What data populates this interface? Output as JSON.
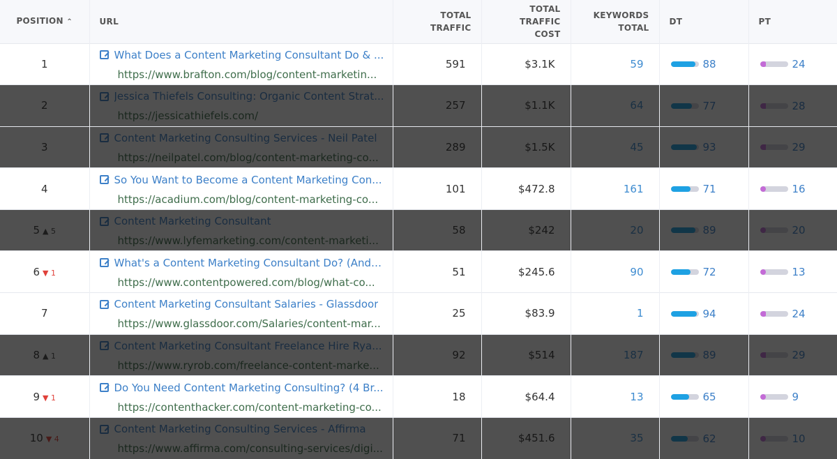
{
  "columns": {
    "position": "POSITION",
    "url": "URL",
    "traffic": "TOTAL TRAFFIC",
    "cost": "TOTAL TRAFFIC COST",
    "keywords": "KEYWORDS TOTAL",
    "dt": "DT",
    "pt": "PT",
    "sort_icon": "^"
  },
  "colors": {
    "dt_fill": "#1ea1e3",
    "pt_fill": "#c36bd6",
    "track": "#d3d4de",
    "link": "#3d80c8",
    "url": "#3f6d4b",
    "down": "#e0413a"
  },
  "rows": [
    {
      "pos": "1",
      "change": "",
      "dir": "",
      "title": "What Does a Content Marketing Consultant Do & ...",
      "url": "https://www.brafton.com/blog/content-marketin...",
      "traffic": "591",
      "cost": "$3.1K",
      "keywords": "59",
      "dt": 88,
      "pt": 24,
      "dimmed": false
    },
    {
      "pos": "2",
      "change": "",
      "dir": "",
      "title": "Jessica Thiefels Consulting: Organic Content Strat...",
      "url": "https://jessicathiefels.com/",
      "traffic": "257",
      "cost": "$1.1K",
      "keywords": "64",
      "dt": 77,
      "pt": 28,
      "dimmed": true
    },
    {
      "pos": "3",
      "change": "",
      "dir": "",
      "title": "Content Marketing Consulting Services - Neil Patel",
      "url": "https://neilpatel.com/blog/content-marketing-co...",
      "traffic": "289",
      "cost": "$1.5K",
      "keywords": "45",
      "dt": 93,
      "pt": 29,
      "dimmed": true
    },
    {
      "pos": "4",
      "change": "",
      "dir": "",
      "title": "So You Want to Become a Content Marketing Con...",
      "url": "https://acadium.com/blog/content-marketing-co...",
      "traffic": "101",
      "cost": "$472.8",
      "keywords": "161",
      "dt": 71,
      "pt": 16,
      "dimmed": false
    },
    {
      "pos": "5",
      "change": "5",
      "dir": "up",
      "title": "Content Marketing Consultant",
      "url": "https://www.lyfemarketing.com/content-marketi...",
      "traffic": "58",
      "cost": "$242",
      "keywords": "20",
      "dt": 89,
      "pt": 20,
      "dimmed": true
    },
    {
      "pos": "6",
      "change": "1",
      "dir": "down",
      "title": "What's a Content Marketing Consultant Do? (And ...",
      "url": "https://www.contentpowered.com/blog/what-co...",
      "traffic": "51",
      "cost": "$245.6",
      "keywords": "90",
      "dt": 72,
      "pt": 13,
      "dimmed": false
    },
    {
      "pos": "7",
      "change": "",
      "dir": "",
      "title": "Content Marketing Consultant Salaries - Glassdoor",
      "url": "https://www.glassdoor.com/Salaries/content-mar...",
      "traffic": "25",
      "cost": "$83.9",
      "keywords": "1",
      "dt": 94,
      "pt": 24,
      "dimmed": false
    },
    {
      "pos": "8",
      "change": "1",
      "dir": "up",
      "title": "Content Marketing Consultant Freelance Hire Rya...",
      "url": "https://www.ryrob.com/freelance-content-marke...",
      "traffic": "92",
      "cost": "$514",
      "keywords": "187",
      "dt": 89,
      "pt": 29,
      "dimmed": true
    },
    {
      "pos": "9",
      "change": "1",
      "dir": "down",
      "title": "Do You Need Content Marketing Consulting? (4 Br...",
      "url": "https://contenthacker.com/content-marketing-co...",
      "traffic": "18",
      "cost": "$64.4",
      "keywords": "13",
      "dt": 65,
      "pt": 9,
      "dimmed": false
    },
    {
      "pos": "10",
      "change": "4",
      "dir": "down",
      "title": "Content Marketing Consulting Services - Affirma",
      "url": "https://www.affirma.com/consulting-services/digi...",
      "traffic": "71",
      "cost": "$451.6",
      "keywords": "35",
      "dt": 62,
      "pt": 10,
      "dimmed": true
    }
  ]
}
